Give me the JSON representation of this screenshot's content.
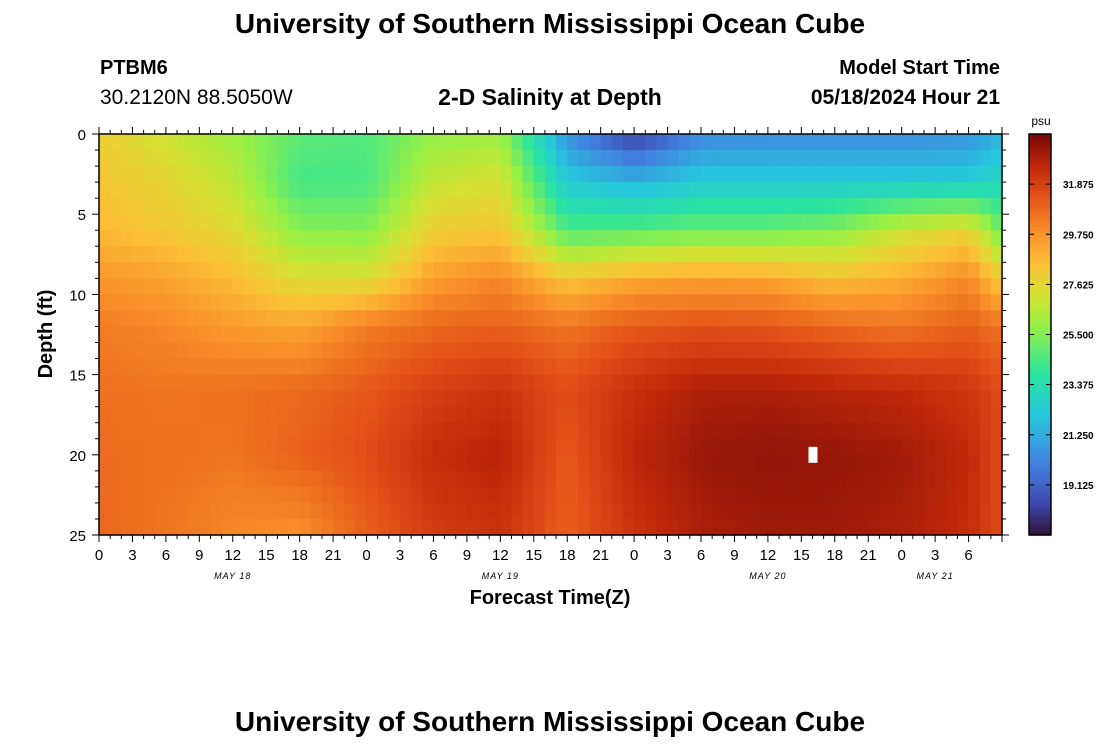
{
  "header": {
    "title": "University of Southern Mississippi Ocean Cube",
    "station_id": "PTBM6",
    "station_coords": "30.2120N  88.5050W",
    "plot_title": "2-D Salinity at Depth",
    "model_start_label": "Model Start Time",
    "model_start_value": "05/18/2024 Hour 21"
  },
  "footer": {
    "title": "University of Southern Mississippi Ocean Cube"
  },
  "chart_data": {
    "type": "heatmap",
    "title": "2-D Salinity at Depth",
    "xlabel": "Forecast Time(Z)",
    "ylabel": "Depth (ft)",
    "x_range_hours_from_model_start": [
      0,
      81
    ],
    "ylim": [
      0,
      25
    ],
    "y_ticks": [
      0,
      5,
      10,
      15,
      20,
      25
    ],
    "x_tick_labels": [
      "0",
      "3",
      "6",
      "9",
      "12",
      "15",
      "18",
      "21",
      "0",
      "3",
      "6",
      "9",
      "12",
      "15",
      "18",
      "21",
      "0",
      "3",
      "6",
      "9",
      "12",
      "15",
      "18",
      "21",
      "0",
      "3",
      "6"
    ],
    "date_labels": [
      {
        "label": "MAY 18",
        "at_tick_index": 4
      },
      {
        "label": "MAY 19",
        "at_tick_index": 12
      },
      {
        "label": "MAY 20",
        "at_tick_index": 20
      },
      {
        "label": "MAY 21",
        "at_tick_index": 25
      }
    ],
    "colorbar": {
      "unit": "psu",
      "min": 17.0,
      "max": 34.0,
      "tick_labels": [
        "31.875",
        "29.750",
        "27.625",
        "25.500",
        "23.375",
        "21.250",
        "19.125"
      ]
    },
    "grid": {
      "time_hours": [
        0,
        6,
        12,
        18,
        24,
        30,
        36,
        42,
        48,
        54,
        60,
        66,
        72,
        78,
        81
      ],
      "depths_ft": [
        0,
        3,
        6,
        9,
        12,
        16,
        20,
        25
      ],
      "salinity_psu": [
        [
          28.0,
          27.0,
          26.0,
          24.8,
          24.6,
          25.8,
          26.0,
          20.5,
          18.0,
          20.2,
          20.3,
          20.3,
          20.3,
          20.5,
          21.5
        ],
        [
          28.3,
          27.7,
          26.7,
          24.3,
          24.4,
          26.8,
          27.3,
          22.3,
          21.5,
          22.3,
          22.3,
          22.3,
          22.3,
          22.4,
          23.0
        ],
        [
          28.7,
          28.2,
          27.5,
          25.6,
          25.5,
          28.0,
          28.3,
          24.5,
          24.7,
          25.0,
          25.0,
          25.5,
          27.0,
          27.8,
          25.0
        ],
        [
          29.6,
          29.3,
          28.6,
          27.4,
          27.3,
          29.4,
          30.0,
          28.3,
          29.1,
          29.3,
          29.2,
          28.5,
          29.0,
          30.0,
          28.0
        ],
        [
          30.3,
          30.0,
          29.5,
          29.2,
          30.3,
          30.8,
          31.0,
          30.5,
          31.2,
          31.4,
          31.3,
          30.8,
          30.5,
          31.0,
          30.5
        ],
        [
          30.6,
          30.5,
          30.6,
          30.8,
          31.2,
          31.9,
          32.3,
          31.5,
          32.4,
          33.0,
          33.0,
          32.8,
          32.6,
          32.2,
          31.5
        ],
        [
          30.7,
          30.6,
          30.5,
          31.0,
          31.5,
          32.5,
          32.8,
          31.2,
          32.7,
          33.3,
          33.5,
          33.4,
          33.2,
          32.6,
          31.5
        ],
        [
          30.8,
          30.5,
          30.0,
          29.8,
          31.0,
          32.0,
          32.3,
          31.0,
          32.3,
          33.0,
          33.2,
          33.2,
          33.0,
          32.5,
          31.5
        ]
      ]
    },
    "missing_cell": {
      "time_hour": 64,
      "depth_ft": 20
    }
  }
}
